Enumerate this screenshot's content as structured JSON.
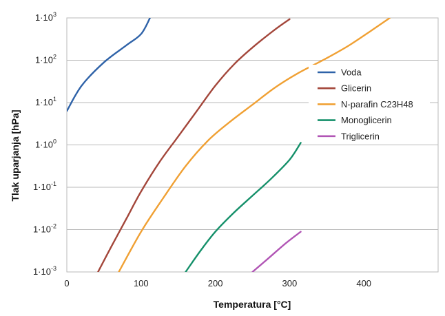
{
  "chart_data": {
    "type": "line",
    "title": "",
    "xlabel": "Temperatura [°C]",
    "ylabel": "Tlak uparjanja [hPa]",
    "xlim": [
      0,
      500
    ],
    "ylim_log10": [
      -3,
      3
    ],
    "y_scale": "log",
    "x_ticks": [
      0,
      100,
      200,
      300,
      400
    ],
    "y_ticks": [
      {
        "exp": -3,
        "base": "1·10",
        "sup": "-3"
      },
      {
        "exp": -2,
        "base": "1·10",
        "sup": "-2"
      },
      {
        "exp": -1,
        "base": "1·10",
        "sup": "-1"
      },
      {
        "exp": 0,
        "base": "1·10",
        "sup": "0"
      },
      {
        "exp": 1,
        "base": "1·10",
        "sup": "1"
      },
      {
        "exp": 2,
        "base": "1·10",
        "sup": "2"
      },
      {
        "exp": 3,
        "base": "1·10",
        "sup": "3"
      }
    ],
    "grid": true,
    "legend_position": "right",
    "series": [
      {
        "name": "Voda",
        "color": "#2e62a8",
        "points": [
          [
            0,
            0.8
          ],
          [
            20,
            1.4
          ],
          [
            50,
            1.95
          ],
          [
            80,
            2.35
          ],
          [
            100,
            2.62
          ],
          [
            112,
            3.0
          ]
        ]
      },
      {
        "name": "Glicerin",
        "color": "#a3463a",
        "points": [
          [
            42,
            -3.0
          ],
          [
            60,
            -2.4
          ],
          [
            80,
            -1.75
          ],
          [
            100,
            -1.1
          ],
          [
            125,
            -0.4
          ],
          [
            150,
            0.2
          ],
          [
            175,
            0.8
          ],
          [
            200,
            1.4
          ],
          [
            225,
            1.9
          ],
          [
            250,
            2.3
          ],
          [
            280,
            2.72
          ],
          [
            300,
            2.97
          ]
        ]
      },
      {
        "name": "N-parafin  C23H48",
        "color": "#f0a033",
        "points": [
          [
            70,
            -3.0
          ],
          [
            100,
            -2.05
          ],
          [
            130,
            -1.25
          ],
          [
            160,
            -0.5
          ],
          [
            190,
            0.1
          ],
          [
            220,
            0.55
          ],
          [
            250,
            0.95
          ],
          [
            280,
            1.35
          ],
          [
            310,
            1.68
          ],
          [
            350,
            2.05
          ],
          [
            380,
            2.35
          ],
          [
            410,
            2.7
          ],
          [
            435,
            3.0
          ]
        ]
      },
      {
        "name": "Monoglicerin",
        "color": "#15906a",
        "points": [
          [
            160,
            -3.0
          ],
          [
            180,
            -2.5
          ],
          [
            200,
            -2.05
          ],
          [
            225,
            -1.6
          ],
          [
            250,
            -1.2
          ],
          [
            275,
            -0.8
          ],
          [
            300,
            -0.35
          ],
          [
            315,
            0.05
          ]
        ]
      },
      {
        "name": "Triglicerin",
        "color": "#b155b5",
        "points": [
          [
            250,
            -3.0
          ],
          [
            270,
            -2.7
          ],
          [
            295,
            -2.32
          ],
          [
            315,
            -2.05
          ]
        ]
      }
    ]
  }
}
